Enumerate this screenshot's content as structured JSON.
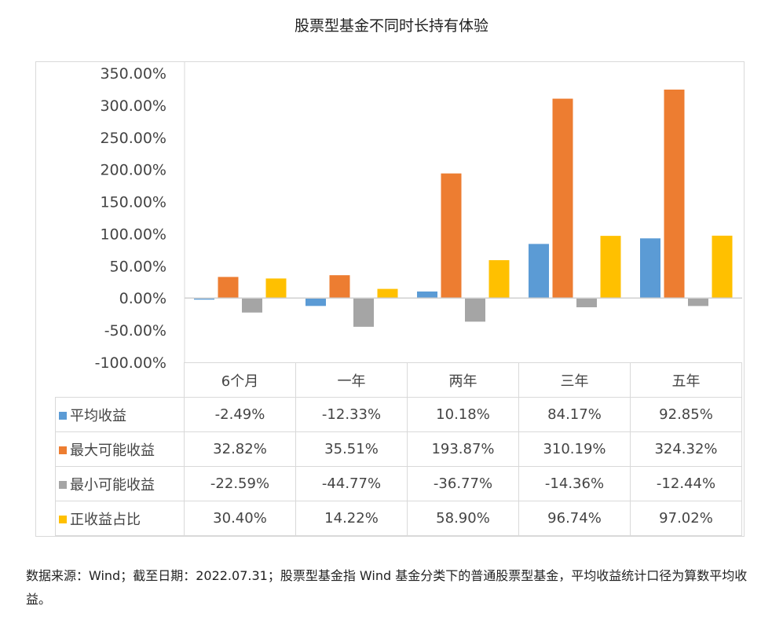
{
  "chart_data": {
    "type": "bar",
    "title": "股票型基金不同时长持有体验",
    "categories": [
      "6个月",
      "一年",
      "两年",
      "三年",
      "五年"
    ],
    "series": [
      {
        "name": "平均收益",
        "color": "#5b9bd5",
        "values": [
          -2.49,
          -12.33,
          10.18,
          84.17,
          92.85
        ],
        "labels": [
          "-2.49%",
          "-12.33%",
          "10.18%",
          "84.17%",
          "92.85%"
        ]
      },
      {
        "name": "最大可能收益",
        "color": "#ed7d31",
        "values": [
          32.82,
          35.51,
          193.87,
          310.19,
          324.32
        ],
        "labels": [
          "32.82%",
          "35.51%",
          "193.87%",
          "310.19%",
          "324.32%"
        ]
      },
      {
        "name": "最小可能收益",
        "color": "#a5a5a5",
        "values": [
          -22.59,
          -44.77,
          -36.77,
          -14.36,
          -12.44
        ],
        "labels": [
          "-22.59%",
          "-44.77%",
          "-36.77%",
          "-14.36%",
          "-12.44%"
        ]
      },
      {
        "name": "正收益占比",
        "color": "#ffc000",
        "values": [
          30.4,
          14.22,
          58.9,
          96.74,
          97.02
        ],
        "labels": [
          "30.40%",
          "14.22%",
          "58.90%",
          "96.74%",
          "97.02%"
        ]
      }
    ],
    "ylim": [
      -100,
      350
    ],
    "yticks": [
      "350.00%",
      "300.00%",
      "250.00%",
      "200.00%",
      "150.00%",
      "100.00%",
      "50.00%",
      "0.00%",
      "-50.00%",
      "-100.00%"
    ],
    "ytick_values": [
      350,
      300,
      250,
      200,
      150,
      100,
      50,
      0,
      -50,
      -100
    ],
    "grid": false,
    "legend": "data-table"
  },
  "footnote": "数据来源：Wind；截至日期：2022.07.31；股票型基金指 Wind 基金分类下的普通股票型基金，平均收益统计口径为算数平均收益。"
}
